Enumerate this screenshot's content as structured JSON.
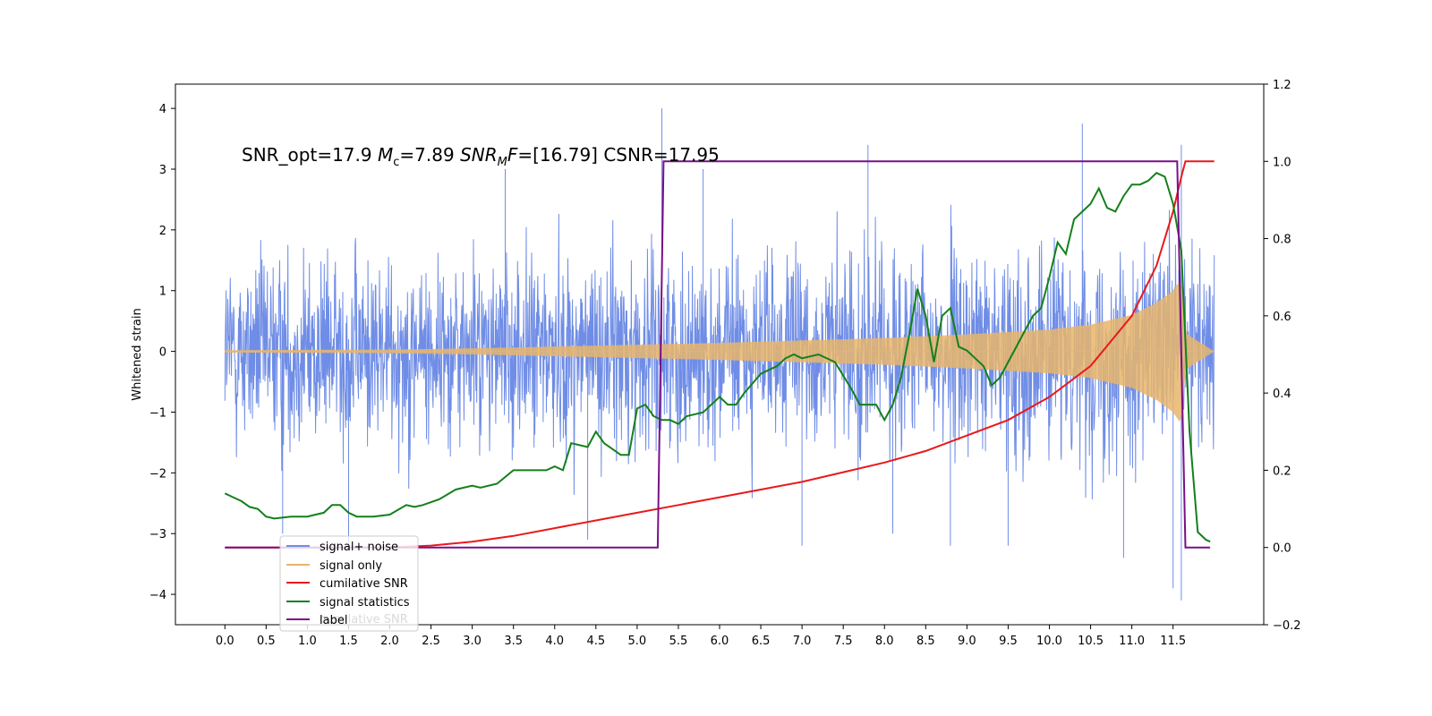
{
  "chart_data": {
    "type": "line",
    "title": "",
    "xlabel": "",
    "ylabel": "Whitened strain",
    "y2label": "",
    "xlim": [
      -0.6,
      12.6
    ],
    "ylim": [
      -4.5,
      4.4
    ],
    "y2lim": [
      -0.2,
      1.2
    ],
    "x_ticks": [
      0.0,
      0.5,
      1.0,
      1.5,
      2.0,
      2.5,
      3.0,
      3.5,
      4.0,
      4.5,
      5.0,
      5.5,
      6.0,
      6.5,
      7.0,
      7.5,
      8.0,
      8.5,
      9.0,
      9.5,
      10.0,
      10.5,
      11.0,
      11.5
    ],
    "x_tick_labels": [
      "0.0",
      "0.5",
      "1.0",
      "1.5",
      "2.0",
      "2.5",
      "3.0",
      "3.5",
      "4.0",
      "4.5",
      "5.0",
      "5.5",
      "6.0",
      "6.5",
      "7.0",
      "7.5",
      "8.0",
      "8.5",
      "9.0",
      "9.5",
      "10.0",
      "10.5",
      "11.0",
      "11.5"
    ],
    "y_ticks": [
      4,
      3,
      2,
      1,
      0,
      -1,
      -2,
      -3,
      -4
    ],
    "y_tick_labels": [
      "4",
      "3",
      "2",
      "1",
      "0",
      "−1",
      "−2",
      "−3",
      "−4"
    ],
    "y2_ticks": [
      1.2,
      1.0,
      0.8,
      0.6,
      0.4,
      0.2,
      0.0,
      -0.2
    ],
    "y2_tick_labels": [
      "1.2",
      "1.0",
      "0.8",
      "0.6",
      "0.4",
      "0.2",
      "0.0",
      "−0.2"
    ],
    "annotation": {
      "part1": "SNR_opt=17.9   ",
      "mc_symbol": "M",
      "mc_sub": "c",
      "part2": "=7.89    ",
      "snr_symbol": "SNR",
      "snr_sub": "M",
      "snr_f": "F",
      "part3": "=[16.79] CSNR=17.95"
    },
    "legend": {
      "position": "lower-left",
      "entries": [
        "signal+ noise",
        "signal only",
        "cumilative SNR",
        "signal statistics",
        "label"
      ],
      "hidden_text": "cumilative SNR"
    },
    "series": [
      {
        "name": "signal+ noise",
        "axis": "left",
        "color": "#6f8de6",
        "style": "noisy band",
        "x_range": [
          0.0,
          12.0
        ],
        "envelope_upper": [
          [
            0.0,
            2.3
          ],
          [
            2.0,
            2.3
          ],
          [
            4.0,
            2.35
          ],
          [
            6.0,
            2.4
          ],
          [
            8.0,
            2.45
          ],
          [
            10.0,
            2.5
          ],
          [
            11.0,
            2.6
          ],
          [
            12.0,
            2.6
          ]
        ],
        "envelope_lower": [
          [
            0.0,
            -2.3
          ],
          [
            2.0,
            -2.3
          ],
          [
            4.0,
            -2.35
          ],
          [
            6.0,
            -2.4
          ],
          [
            8.0,
            -2.45
          ],
          [
            10.0,
            -2.5
          ],
          [
            11.0,
            -2.6
          ],
          [
            12.0,
            -2.6
          ]
        ],
        "peaks": [
          [
            5.3,
            4.0
          ],
          [
            11.6,
            3.4
          ],
          [
            10.4,
            3.75
          ],
          [
            7.8,
            3.4
          ],
          [
            11.6,
            -4.1
          ],
          [
            11.5,
            -3.9
          ],
          [
            1.5,
            -3.2
          ],
          [
            4.4,
            -3.1
          ],
          [
            7.0,
            -3.2
          ],
          [
            8.1,
            -3.0
          ],
          [
            8.8,
            -3.2
          ],
          [
            9.5,
            -3.2
          ],
          [
            10.9,
            -3.4
          ],
          [
            0.7,
            -3.0
          ],
          [
            3.4,
            3.0
          ],
          [
            5.8,
            3.0
          ]
        ]
      },
      {
        "name": "signal only",
        "axis": "left",
        "color": "#e8b56b",
        "style": "chirp envelope",
        "envelope": [
          [
            0.0,
            0.02
          ],
          [
            2.0,
            0.03
          ],
          [
            3.0,
            0.05
          ],
          [
            4.0,
            0.08
          ],
          [
            5.0,
            0.11
          ],
          [
            6.0,
            0.14
          ],
          [
            7.0,
            0.18
          ],
          [
            8.0,
            0.22
          ],
          [
            9.0,
            0.28
          ],
          [
            10.0,
            0.36
          ],
          [
            10.5,
            0.44
          ],
          [
            11.0,
            0.6
          ],
          [
            11.3,
            0.8
          ],
          [
            11.5,
            1.0
          ],
          [
            11.6,
            1.2
          ],
          [
            11.65,
            0.3
          ],
          [
            12.0,
            0.0
          ]
        ]
      },
      {
        "name": "cumilative SNR",
        "axis": "right",
        "color": "#e8191c",
        "points": [
          [
            0.0,
            0.0
          ],
          [
            1.0,
            0.0
          ],
          [
            2.0,
            0.0
          ],
          [
            2.5,
            0.005
          ],
          [
            3.0,
            0.015
          ],
          [
            3.5,
            0.03
          ],
          [
            4.0,
            0.05
          ],
          [
            4.5,
            0.07
          ],
          [
            5.0,
            0.09
          ],
          [
            5.5,
            0.11
          ],
          [
            6.0,
            0.13
          ],
          [
            6.5,
            0.15
          ],
          [
            7.0,
            0.17
          ],
          [
            7.5,
            0.195
          ],
          [
            8.0,
            0.22
          ],
          [
            8.5,
            0.25
          ],
          [
            9.0,
            0.29
          ],
          [
            9.5,
            0.33
          ],
          [
            10.0,
            0.39
          ],
          [
            10.5,
            0.47
          ],
          [
            11.0,
            0.6
          ],
          [
            11.3,
            0.73
          ],
          [
            11.5,
            0.87
          ],
          [
            11.6,
            0.96
          ],
          [
            11.65,
            1.0
          ],
          [
            12.0,
            1.0
          ]
        ]
      },
      {
        "name": "signal statistics",
        "axis": "right",
        "color": "#13801b",
        "points": [
          [
            0.0,
            0.14
          ],
          [
            0.1,
            0.13
          ],
          [
            0.2,
            0.12
          ],
          [
            0.3,
            0.105
          ],
          [
            0.4,
            0.1
          ],
          [
            0.5,
            0.08
          ],
          [
            0.6,
            0.075
          ],
          [
            0.8,
            0.08
          ],
          [
            1.0,
            0.08
          ],
          [
            1.1,
            0.085
          ],
          [
            1.2,
            0.09
          ],
          [
            1.3,
            0.11
          ],
          [
            1.4,
            0.11
          ],
          [
            1.5,
            0.09
          ],
          [
            1.6,
            0.08
          ],
          [
            1.8,
            0.08
          ],
          [
            2.0,
            0.085
          ],
          [
            2.2,
            0.11
          ],
          [
            2.3,
            0.105
          ],
          [
            2.4,
            0.11
          ],
          [
            2.6,
            0.125
          ],
          [
            2.8,
            0.15
          ],
          [
            3.0,
            0.16
          ],
          [
            3.1,
            0.155
          ],
          [
            3.3,
            0.165
          ],
          [
            3.5,
            0.2
          ],
          [
            3.7,
            0.2
          ],
          [
            3.9,
            0.2
          ],
          [
            4.0,
            0.21
          ],
          [
            4.1,
            0.2
          ],
          [
            4.2,
            0.27
          ],
          [
            4.4,
            0.26
          ],
          [
            4.5,
            0.3
          ],
          [
            4.6,
            0.27
          ],
          [
            4.8,
            0.24
          ],
          [
            4.9,
            0.24
          ],
          [
            5.0,
            0.36
          ],
          [
            5.1,
            0.37
          ],
          [
            5.2,
            0.34
          ],
          [
            5.3,
            0.33
          ],
          [
            5.4,
            0.33
          ],
          [
            5.5,
            0.32
          ],
          [
            5.6,
            0.34
          ],
          [
            5.8,
            0.35
          ],
          [
            6.0,
            0.39
          ],
          [
            6.1,
            0.37
          ],
          [
            6.2,
            0.37
          ],
          [
            6.3,
            0.4
          ],
          [
            6.5,
            0.45
          ],
          [
            6.7,
            0.47
          ],
          [
            6.8,
            0.49
          ],
          [
            6.9,
            0.5
          ],
          [
            7.0,
            0.49
          ],
          [
            7.2,
            0.5
          ],
          [
            7.4,
            0.48
          ],
          [
            7.6,
            0.41
          ],
          [
            7.7,
            0.37
          ],
          [
            7.9,
            0.37
          ],
          [
            8.0,
            0.33
          ],
          [
            8.1,
            0.37
          ],
          [
            8.2,
            0.44
          ],
          [
            8.3,
            0.55
          ],
          [
            8.4,
            0.67
          ],
          [
            8.5,
            0.6
          ],
          [
            8.6,
            0.48
          ],
          [
            8.7,
            0.6
          ],
          [
            8.8,
            0.62
          ],
          [
            8.9,
            0.52
          ],
          [
            9.0,
            0.51
          ],
          [
            9.1,
            0.49
          ],
          [
            9.2,
            0.47
          ],
          [
            9.3,
            0.42
          ],
          [
            9.4,
            0.44
          ],
          [
            9.5,
            0.48
          ],
          [
            9.6,
            0.52
          ],
          [
            9.7,
            0.56
          ],
          [
            9.8,
            0.6
          ],
          [
            9.9,
            0.62
          ],
          [
            10.0,
            0.7
          ],
          [
            10.1,
            0.79
          ],
          [
            10.2,
            0.76
          ],
          [
            10.3,
            0.85
          ],
          [
            10.4,
            0.87
          ],
          [
            10.5,
            0.89
          ],
          [
            10.6,
            0.93
          ],
          [
            10.7,
            0.88
          ],
          [
            10.8,
            0.87
          ],
          [
            10.9,
            0.91
          ],
          [
            11.0,
            0.94
          ],
          [
            11.1,
            0.94
          ],
          [
            11.2,
            0.95
          ],
          [
            11.3,
            0.97
          ],
          [
            11.4,
            0.96
          ],
          [
            11.5,
            0.89
          ],
          [
            11.6,
            0.77
          ],
          [
            11.7,
            0.3
          ],
          [
            11.8,
            0.04
          ],
          [
            11.9,
            0.02
          ],
          [
            11.95,
            0.015
          ]
        ]
      },
      {
        "name": "label",
        "axis": "right",
        "color": "#7a0f87",
        "points": [
          [
            0.0,
            0.0
          ],
          [
            5.25,
            0.0
          ],
          [
            5.32,
            1.0
          ],
          [
            11.55,
            1.0
          ],
          [
            11.65,
            0.0
          ],
          [
            11.95,
            0.0
          ]
        ]
      }
    ]
  }
}
